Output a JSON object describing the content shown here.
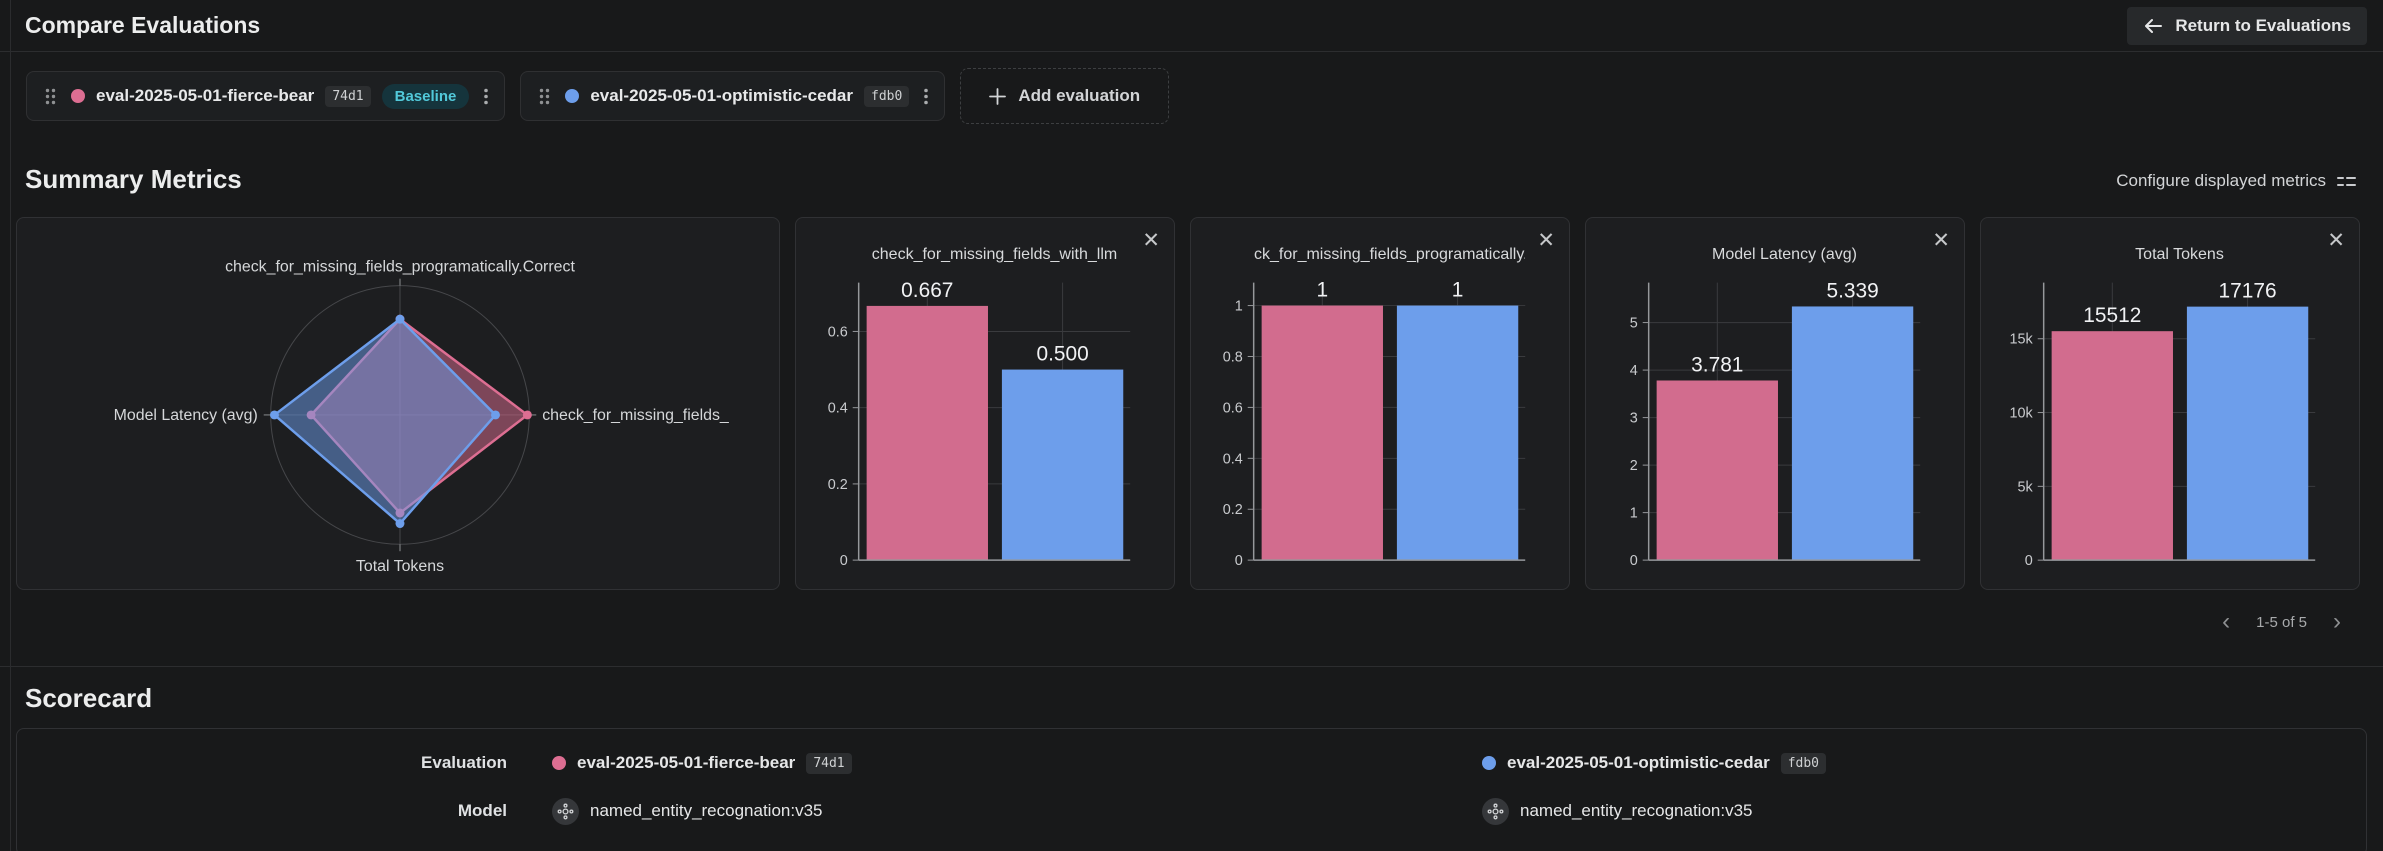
{
  "header": {
    "title": "Compare Evaluations",
    "return_button_label": "Return to Evaluations"
  },
  "evaluations": [
    {
      "name": "eval-2025-05-01-fierce-bear",
      "hash": "74d1",
      "color": "#dd6e92",
      "baseline_label": "Baseline"
    },
    {
      "name": "eval-2025-05-01-optimistic-cedar",
      "hash": "fdb0",
      "color": "#6d9eeb"
    }
  ],
  "add_evaluation_label": "Add evaluation",
  "summary": {
    "title": "Summary Metrics",
    "configure_label": "Configure displayed metrics",
    "pagination": {
      "range": "1-5 of 5",
      "prev": "‹",
      "next": "›"
    },
    "close_glyph": "✕"
  },
  "colors": {
    "pink": "#dd6e92",
    "pink_bar": "#d26c8e",
    "blue": "#6d9eeb",
    "baseline_teal": "#52c9da"
  },
  "chart_data": [
    {
      "type": "radar",
      "axes": [
        {
          "label": "check_for_missing_fields_programatically.Correct",
          "max": 1.35
        },
        {
          "label": "check_for_missing_fields_",
          "max": 0.677
        },
        {
          "label": "Total Tokens",
          "max": 20450
        },
        {
          "label": "Model Latency (avg)",
          "max": 5.5
        }
      ],
      "series": [
        {
          "name": "eval-2025-05-01-fierce-bear",
          "color": "#dd6e92",
          "values": [
            1,
            0.667,
            15512,
            3.781
          ]
        },
        {
          "name": "eval-2025-05-01-optimistic-cedar",
          "color": "#6d9eeb",
          "values": [
            1,
            0.5,
            17176,
            5.339
          ]
        }
      ]
    },
    {
      "type": "bar",
      "title": "check_for_missing_fields_with_llm",
      "categories": [
        "eval-2025-05-01-fierce-bear",
        "eval-2025-05-01-optimistic-cedar"
      ],
      "values": [
        0.667,
        0.5
      ],
      "value_labels": [
        "0.667",
        "0.500"
      ],
      "bar_colors": [
        "#d26c8e",
        "#6d9eeb"
      ],
      "ymax": 0.728,
      "yticks": [
        {
          "v": 0,
          "t": "0"
        },
        {
          "v": 0.2,
          "t": "0.2"
        },
        {
          "v": 0.4,
          "t": "0.4"
        },
        {
          "v": 0.6,
          "t": "0.6"
        }
      ]
    },
    {
      "type": "bar",
      "title": "ck_for_missing_fields_programatically.C",
      "categories": [
        "eval-2025-05-01-fierce-bear",
        "eval-2025-05-01-optimistic-cedar"
      ],
      "values": [
        1,
        1
      ],
      "value_labels": [
        "1",
        "1"
      ],
      "bar_colors": [
        "#d26c8e",
        "#6d9eeb"
      ],
      "ymax": 1.09,
      "yticks": [
        {
          "v": 0,
          "t": "0"
        },
        {
          "v": 0.2,
          "t": "0.2"
        },
        {
          "v": 0.4,
          "t": "0.4"
        },
        {
          "v": 0.6,
          "t": "0.6"
        },
        {
          "v": 0.8,
          "t": "0.8"
        },
        {
          "v": 1,
          "t": "1"
        }
      ]
    },
    {
      "type": "bar",
      "title": "Model Latency (avg)",
      "categories": [
        "eval-2025-05-01-fierce-bear",
        "eval-2025-05-01-optimistic-cedar"
      ],
      "values": [
        3.781,
        5.339
      ],
      "value_labels": [
        "3.781",
        "5.339"
      ],
      "bar_colors": [
        "#d26c8e",
        "#6d9eeb"
      ],
      "ymax": 5.84,
      "yticks": [
        {
          "v": 0,
          "t": "0"
        },
        {
          "v": 1,
          "t": "1"
        },
        {
          "v": 2,
          "t": "2"
        },
        {
          "v": 3,
          "t": "3"
        },
        {
          "v": 4,
          "t": "4"
        },
        {
          "v": 5,
          "t": "5"
        }
      ]
    },
    {
      "type": "bar",
      "title": "Total Tokens",
      "categories": [
        "eval-2025-05-01-fierce-bear",
        "eval-2025-05-01-optimistic-cedar"
      ],
      "values": [
        15512,
        17176
      ],
      "value_labels": [
        "15512",
        "17176"
      ],
      "bar_colors": [
        "#d26c8e",
        "#6d9eeb"
      ],
      "ymax": 18800,
      "yticks": [
        {
          "v": 0,
          "t": "0"
        },
        {
          "v": 5000,
          "t": "5k"
        },
        {
          "v": 10000,
          "t": "10k"
        },
        {
          "v": 15000,
          "t": "15k"
        }
      ]
    }
  ],
  "scorecard": {
    "title": "Scorecard",
    "row_labels": {
      "evaluation": "Evaluation",
      "model": "Model"
    },
    "model_values": [
      "named_entity_recognation:v35",
      "named_entity_recognation:v35"
    ]
  }
}
